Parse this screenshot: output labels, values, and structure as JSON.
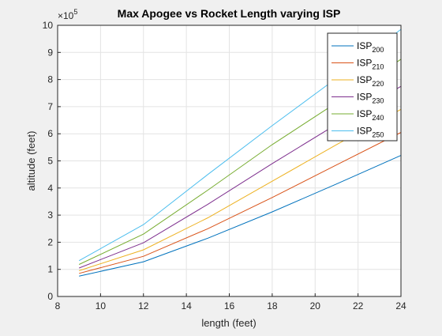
{
  "chart_data": {
    "type": "line",
    "title": "Max Apogee vs Rocket Length varying ISP",
    "xlabel": "length (feet)",
    "ylabel": "altitude (feet)",
    "xlim": [
      8,
      24
    ],
    "ylim": [
      0,
      10
    ],
    "xticks": [
      "8",
      "10",
      "12",
      "14",
      "16",
      "18",
      "20",
      "22",
      "24"
    ],
    "yticks": [
      "0",
      "1",
      "2",
      "3",
      "4",
      "5",
      "6",
      "7",
      "8",
      "9",
      "10"
    ],
    "y_multiplier": {
      "base": "×10",
      "exponent": "5"
    },
    "grid": true,
    "legend_position": "top-right",
    "x": [
      9,
      12,
      15,
      18,
      21,
      24
    ],
    "series": [
      {
        "name": "ISP",
        "subscript": "200",
        "color": "#0072BD",
        "values": [
          0.75,
          1.28,
          2.15,
          3.12,
          4.15,
          5.2
        ]
      },
      {
        "name": "ISP",
        "subscript": "210",
        "color": "#D95319",
        "values": [
          0.85,
          1.48,
          2.5,
          3.65,
          4.85,
          6.05
        ]
      },
      {
        "name": "ISP",
        "subscript": "220",
        "color": "#EDB120",
        "values": [
          0.95,
          1.72,
          2.9,
          4.25,
          5.6,
          6.9
        ]
      },
      {
        "name": "ISP",
        "subscript": "230",
        "color": "#7E2F8E",
        "values": [
          1.05,
          1.98,
          3.4,
          4.9,
          6.35,
          7.75
        ]
      },
      {
        "name": "ISP",
        "subscript": "240",
        "color": "#77AC30",
        "values": [
          1.18,
          2.3,
          3.92,
          5.6,
          7.15,
          8.75
        ]
      },
      {
        "name": "ISP",
        "subscript": "250",
        "color": "#4DBEEE",
        "values": [
          1.32,
          2.65,
          4.5,
          6.3,
          8.05,
          9.85
        ]
      }
    ]
  }
}
